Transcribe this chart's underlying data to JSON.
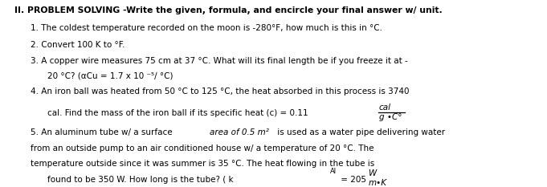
{
  "bg_color": "#ffffff",
  "figsize": [
    6.81,
    2.33
  ],
  "dpi": 100,
  "header": "II. PROBLEM SOLVING -Write the given, formula, and encircle your final answer w/ unit.",
  "line1": "1. The coldest temperature recorded on the moon is -280°F, how much is this in °C.",
  "line2": "2. Convert 100 K to °F.",
  "line3a": "3. A copper wire measures 75 cm at 37 °C. What will its final length be if you freeze it at -",
  "line3b": "20 °C? (αCu = 1.7 x 10 ⁻⁵/ °C)",
  "line4a": "4. An iron ball was heated from 50 °C to 125 °C, the heat absorbed in this process is 3740",
  "line4b": "cal. Find the mass of the iron ball if its specific heat (c) = 0.11 ",
  "line4_num": "cal",
  "line4_den": "g •C°",
  "line5a_pre": "5. An aluminum tube w/ a surface ",
  "line5a_italic": "area of 0.5 m²",
  "line5a_post": " is used as a water pipe delivering water",
  "line5b": "from an outside pump to an air conditioned house w/ a temperature of 20 °C. The",
  "line5c": "temperature outside since it was summer is 35 °C. The heat flowing in the tube is",
  "line5d": "found to be 350 W. How long is the tube? ( k",
  "line5d_sub": "Al",
  "line5d_post": " = 205 ",
  "line5d_num": "W",
  "line5d_den": "m•K",
  "fontsize": 7.5,
  "fontsize_header": 7.8
}
